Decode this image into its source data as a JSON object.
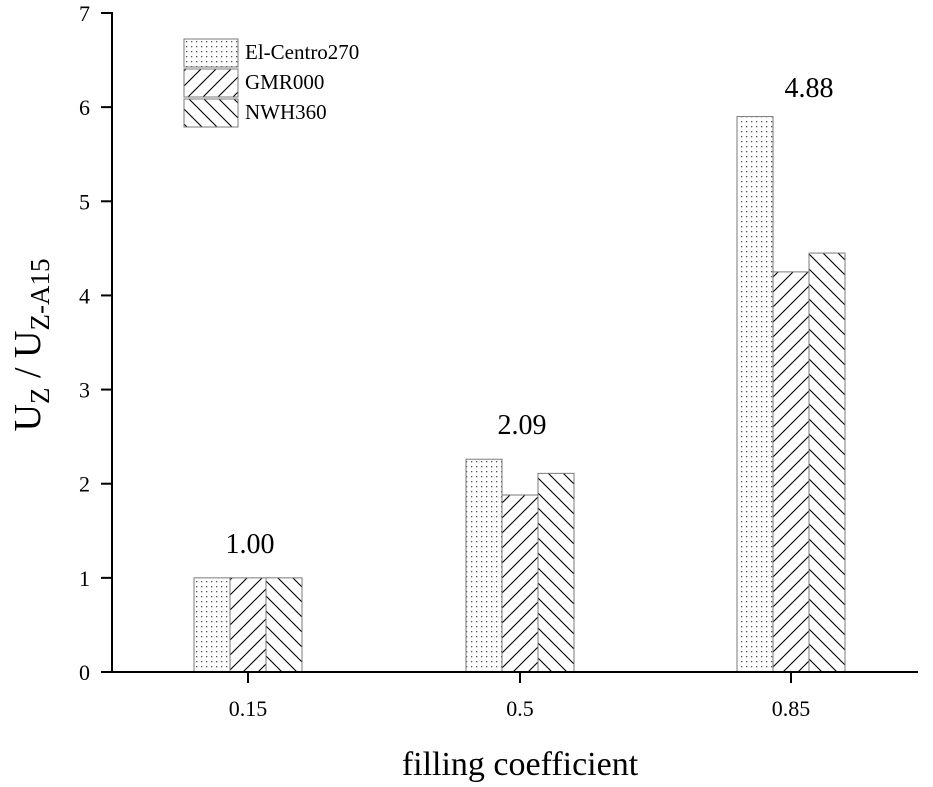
{
  "chart_data": {
    "type": "bar",
    "categories": [
      "0.15",
      "0.5",
      "0.85"
    ],
    "series": [
      {
        "name": "El-Centro270",
        "pattern": "dots",
        "values": [
          1.0,
          2.26,
          5.9
        ]
      },
      {
        "name": "GMR000",
        "pattern": "forward-hatch",
        "values": [
          1.0,
          1.88,
          4.25
        ]
      },
      {
        "name": "NWH360",
        "pattern": "back-hatch",
        "values": [
          1.0,
          2.11,
          4.45
        ]
      }
    ],
    "annotations": [
      "1.00",
      "2.09",
      "4.88"
    ],
    "title": "",
    "xlabel": "filling coefficient",
    "ylabel": {
      "main": "U",
      "sub1": "Z",
      "sep": " / U",
      "sub2": "Z-A15"
    },
    "ylim": [
      0,
      7
    ],
    "yticks": [
      "0",
      "1",
      "2",
      "3",
      "4",
      "5",
      "6",
      "7"
    ],
    "grid": false,
    "legend_position": "top-left"
  }
}
